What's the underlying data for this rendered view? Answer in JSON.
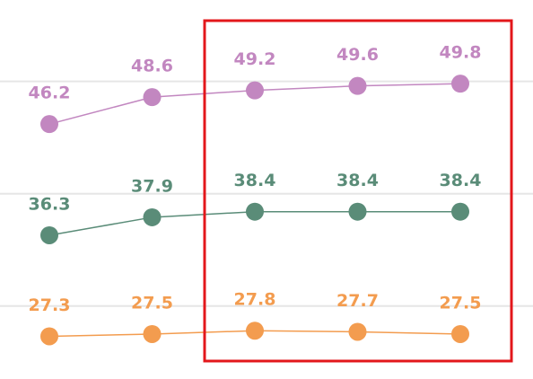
{
  "chart_data": {
    "type": "line",
    "categories": [
      null,
      null,
      null,
      null,
      null
    ],
    "series": [
      {
        "name": null,
        "color": "#c287c0",
        "values": [
          46.2,
          48.6,
          49.2,
          49.6,
          49.8
        ]
      },
      {
        "name": null,
        "color": "#5a8c78",
        "values": [
          36.3,
          37.9,
          38.4,
          38.4,
          38.4
        ]
      },
      {
        "name": null,
        "color": "#f39c4f",
        "values": [
          27.3,
          27.5,
          27.8,
          27.7,
          27.5
        ]
      }
    ],
    "ylim": [
      23.5,
      57.25
    ],
    "yticks": [
      30,
      40,
      50
    ],
    "grid": true
  }
}
